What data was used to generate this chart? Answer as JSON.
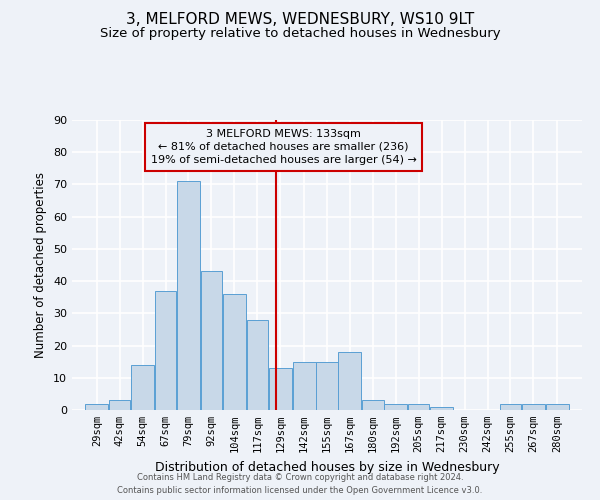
{
  "title": "3, MELFORD MEWS, WEDNESBURY, WS10 9LT",
  "subtitle": "Size of property relative to detached houses in Wednesbury",
  "xlabel": "Distribution of detached houses by size in Wednesbury",
  "ylabel": "Number of detached properties",
  "footer_line1": "Contains HM Land Registry data © Crown copyright and database right 2024.",
  "footer_line2": "Contains public sector information licensed under the Open Government Licence v3.0.",
  "categories": [
    "29sqm",
    "42sqm",
    "54sqm",
    "67sqm",
    "79sqm",
    "92sqm",
    "104sqm",
    "117sqm",
    "129sqm",
    "142sqm",
    "155sqm",
    "167sqm",
    "180sqm",
    "192sqm",
    "205sqm",
    "217sqm",
    "230sqm",
    "242sqm",
    "255sqm",
    "267sqm",
    "280sqm"
  ],
  "values": [
    2,
    3,
    14,
    37,
    71,
    43,
    36,
    28,
    13,
    15,
    15,
    18,
    3,
    2,
    2,
    1,
    0,
    0,
    2,
    2,
    2
  ],
  "bar_color": "#c8d8e8",
  "bar_edge_color": "#5a9fd4",
  "property_line_x": 133,
  "annotation_line1": "3 MELFORD MEWS: 133sqm",
  "annotation_line2": "← 81% of detached houses are smaller (236)",
  "annotation_line3": "19% of semi-detached houses are larger (54) →",
  "annotation_box_color": "#cc0000",
  "vline_color": "#cc0000",
  "ylim": [
    0,
    90
  ],
  "yticks": [
    0,
    10,
    20,
    30,
    40,
    50,
    60,
    70,
    80,
    90
  ],
  "bg_color": "#eef2f8",
  "grid_color": "#ffffff",
  "title_fontsize": 11,
  "subtitle_fontsize": 9.5,
  "xlabel_fontsize": 9,
  "ylabel_fontsize": 8.5,
  "tick_fontsize": 7.5,
  "annot_fontsize": 8,
  "footer_fontsize": 6
}
